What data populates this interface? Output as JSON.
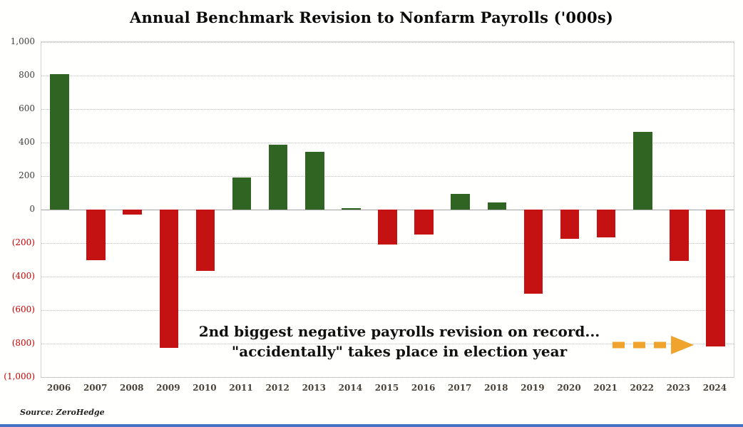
{
  "title": "Annual Benchmark Revision to Nonfarm Payrolls ('000s)",
  "source": "Source: ZeroHedge",
  "annotation": {
    "line1": "2nd  biggest negative payrolls revision on record...",
    "line2": "\"accidentally\" takes place in election year"
  },
  "colors": {
    "positive": "#2f6422",
    "negative": "#c41212",
    "negative_label": "#cc0000",
    "arrow": "#f0a42e",
    "bottom_border": "#4472c4"
  },
  "chart_data": {
    "type": "bar",
    "title": "Annual Benchmark Revision to Nonfarm Payrolls ('000s)",
    "xlabel": "",
    "ylabel": "",
    "ylim": [
      -1000,
      1000
    ],
    "grid": true,
    "legend": "none",
    "categories": [
      "2006",
      "2007",
      "2008",
      "2009",
      "2010",
      "2011",
      "2012",
      "2013",
      "2014",
      "2015",
      "2016",
      "2017",
      "2018",
      "2019",
      "2020",
      "2021",
      "2022",
      "2023",
      "2024"
    ],
    "values": [
      810,
      -300,
      -30,
      -824,
      -366,
      192,
      386,
      345,
      7,
      -208,
      -150,
      95,
      43,
      -501,
      -173,
      -166,
      462,
      -306,
      -818
    ],
    "yticks": [
      {
        "value": 1000,
        "label": "1,000"
      },
      {
        "value": 800,
        "label": "800"
      },
      {
        "value": 600,
        "label": "600"
      },
      {
        "value": 400,
        "label": "400"
      },
      {
        "value": 200,
        "label": "200"
      },
      {
        "value": 0,
        "label": "0"
      },
      {
        "value": -200,
        "label": "(200)"
      },
      {
        "value": -400,
        "label": "(400)"
      },
      {
        "value": -600,
        "label": "(600)"
      },
      {
        "value": -800,
        "label": "(800)"
      },
      {
        "value": -1000,
        "label": "(1,000)"
      }
    ]
  }
}
